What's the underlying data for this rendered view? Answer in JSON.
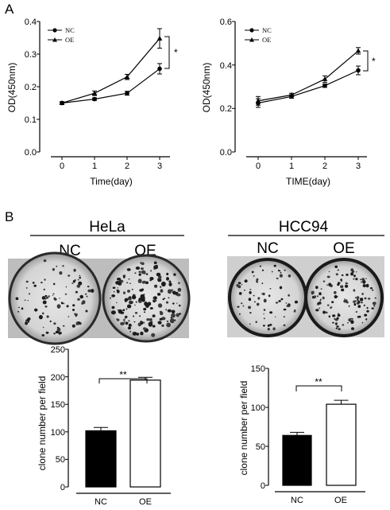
{
  "panels": {
    "a": "A",
    "b": "B"
  },
  "chart_data": [
    {
      "type": "line",
      "x": [
        0,
        1,
        2,
        3
      ],
      "xlabel": "Time(day)",
      "ylabel": "OD(450nm)",
      "ylim": [
        0,
        0.4
      ],
      "yticks": [
        "0.0",
        "0.1",
        "0.2",
        "0.3",
        "0.4"
      ],
      "xticks": [
        "0",
        "1",
        "2",
        "3"
      ],
      "legend_placement": "top-left",
      "series": [
        {
          "name": "NC",
          "marker": "circle",
          "values": [
            0.15,
            0.162,
            0.18,
            0.255
          ],
          "err": [
            0.004,
            0.004,
            0.006,
            0.016
          ]
        },
        {
          "name": "OE",
          "marker": "triangle",
          "values": [
            0.15,
            0.18,
            0.23,
            0.348
          ],
          "err": [
            0.004,
            0.007,
            0.008,
            0.03
          ]
        }
      ],
      "annotations": [
        "*"
      ]
    },
    {
      "type": "line",
      "x": [
        0,
        1,
        2,
        3
      ],
      "xlabel": "TIME(day)",
      "ylabel": "OD(450nm)",
      "ylim": [
        0,
        0.6
      ],
      "yticks": [
        "0.0",
        "0.2",
        "0.4",
        "0.6"
      ],
      "xticks": [
        "0",
        "1",
        "2",
        "3"
      ],
      "legend_placement": "top-left",
      "series": [
        {
          "name": "NC",
          "marker": "circle",
          "values": [
            0.225,
            0.255,
            0.305,
            0.375
          ],
          "err": [
            0.02,
            0.008,
            0.008,
            0.02
          ]
        },
        {
          "name": "OE",
          "marker": "triangle",
          "values": [
            0.235,
            0.262,
            0.335,
            0.465
          ],
          "err": [
            0.02,
            0.008,
            0.015,
            0.015
          ]
        }
      ],
      "annotations": [
        "*"
      ]
    },
    {
      "type": "bar",
      "categories": [
        "NC",
        "OE"
      ],
      "values": [
        102,
        194
      ],
      "err": [
        6,
        5
      ],
      "fills": [
        "#000000",
        "#ffffff"
      ],
      "ylabel": "clone number per field",
      "ylim": [
        0,
        250
      ],
      "yticks": [
        "0",
        "50",
        "100",
        "150",
        "200",
        "250"
      ],
      "annotations": [
        "**"
      ]
    },
    {
      "type": "bar",
      "categories": [
        "NC",
        "OE"
      ],
      "values": [
        64,
        104
      ],
      "err": [
        4,
        5
      ],
      "fills": [
        "#000000",
        "#ffffff"
      ],
      "ylabel": "clone number per field",
      "ylim": [
        0,
        150
      ],
      "yticks": [
        "0",
        "50",
        "100",
        "150"
      ],
      "annotations": [
        "**"
      ]
    }
  ],
  "plates": [
    {
      "cell_line": "HeLa",
      "left_label": "NC",
      "right_label": "OE"
    },
    {
      "cell_line": "HCC94",
      "left_label": "NC",
      "right_label": "OE"
    }
  ]
}
